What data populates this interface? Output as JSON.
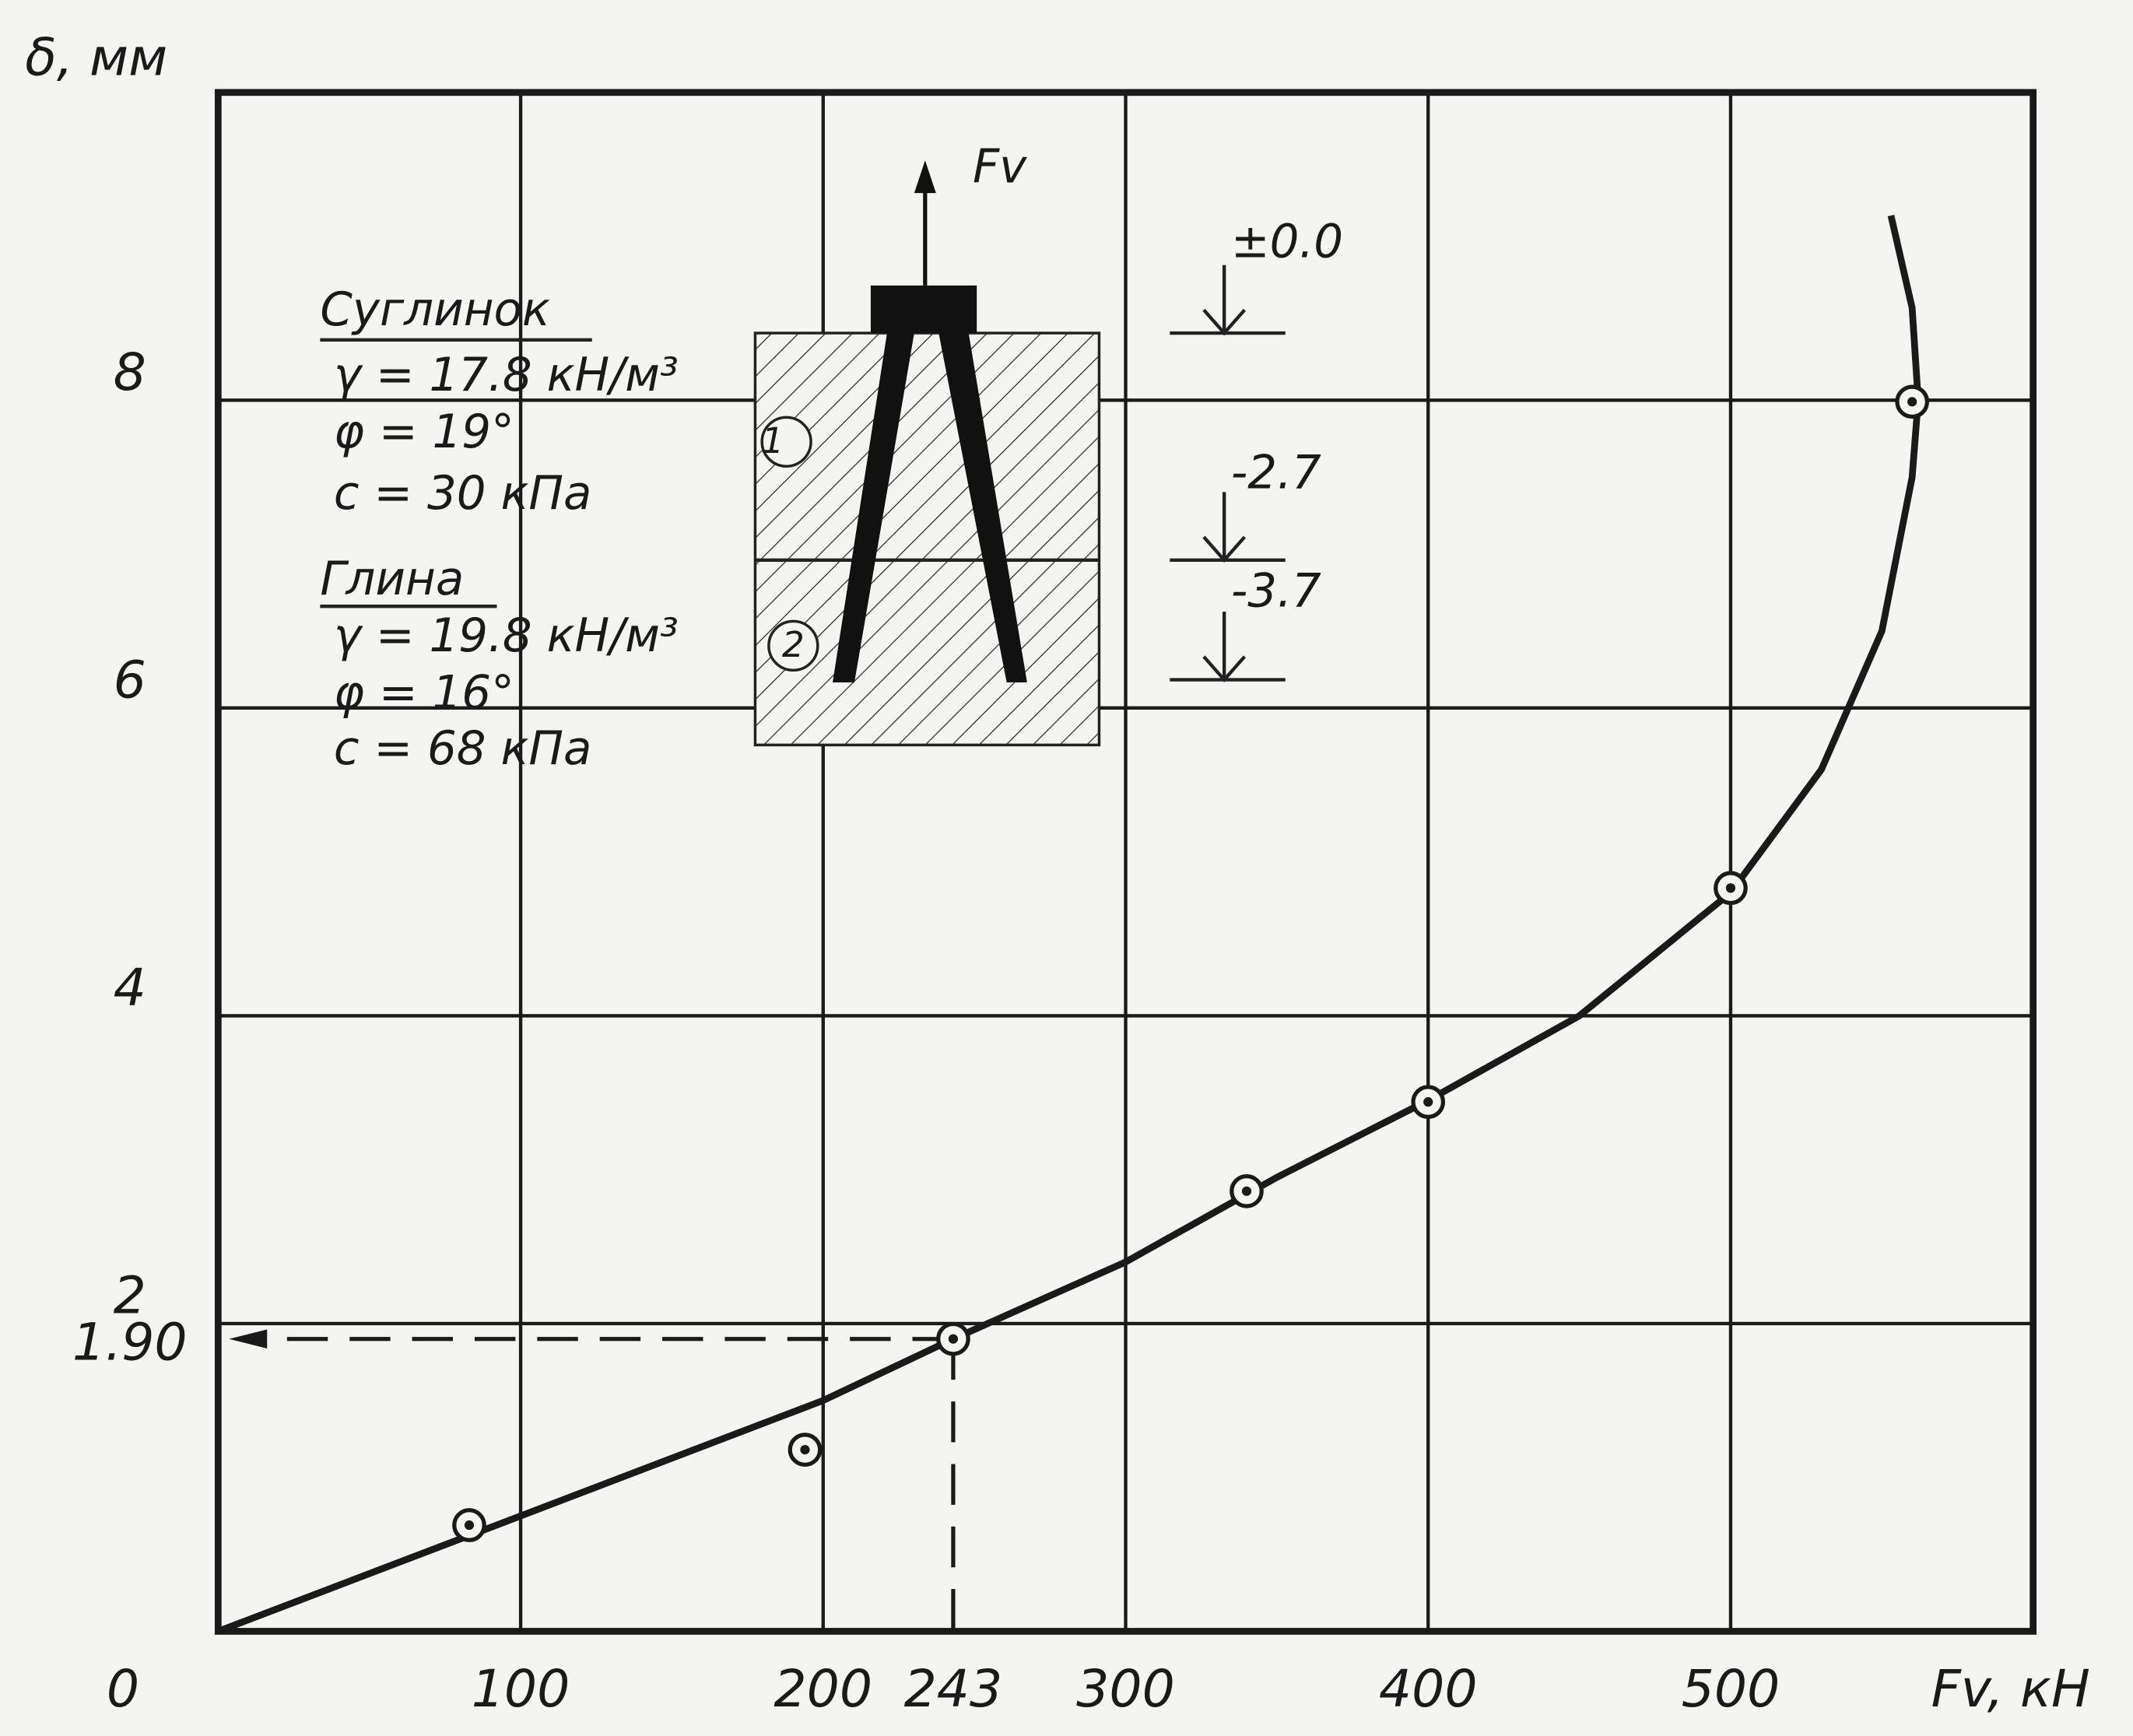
{
  "chart_data": {
    "type": "line",
    "x_label": "Fv, кН",
    "y_label": "δ, мм",
    "xlim": [
      0,
      600
    ],
    "ylim": [
      0,
      10
    ],
    "xticks": [
      0,
      100,
      200,
      300,
      400,
      500
    ],
    "yticks": [
      2,
      4,
      6,
      8
    ],
    "grid": true,
    "color": "#1a1a1a",
    "series": [
      {
        "marker": "circle-dot",
        "x": [
          83,
          194,
          243,
          340,
          400,
          500,
          560
        ],
        "values": [
          0.69,
          1.18,
          1.9,
          2.86,
          3.44,
          4.83,
          7.99
        ]
      },
      {
        "marker": "none",
        "x": [
          0,
          100,
          200,
          243,
          300,
          350,
          400,
          450,
          500,
          530,
          550,
          560,
          562,
          560,
          553
        ],
        "values": [
          0,
          0.75,
          1.5,
          1.9,
          2.4,
          2.95,
          3.45,
          4.0,
          4.8,
          5.6,
          6.5,
          7.5,
          8.0,
          8.6,
          9.2
        ]
      }
    ],
    "reference_point": {
      "x": 243,
      "y": {
        "value": 1.9,
        "label": "1.90"
      }
    },
    "inset": {
      "force_label": "Fv",
      "layer_1": {
        "name": "Суглинок",
        "gamma": "γ = 17.8 кН/м³",
        "phi": "φ = 19°",
        "c": "c = 30 кПа",
        "marker": "1"
      },
      "layer_2": {
        "name": "Глина",
        "gamma": "γ = 19.8 кН/м³",
        "phi": "φ = 16°",
        "c": "c = 68 кПа",
        "marker": "2"
      },
      "levels": [
        "±0.0",
        "-2.7",
        "-3.7"
      ]
    }
  }
}
